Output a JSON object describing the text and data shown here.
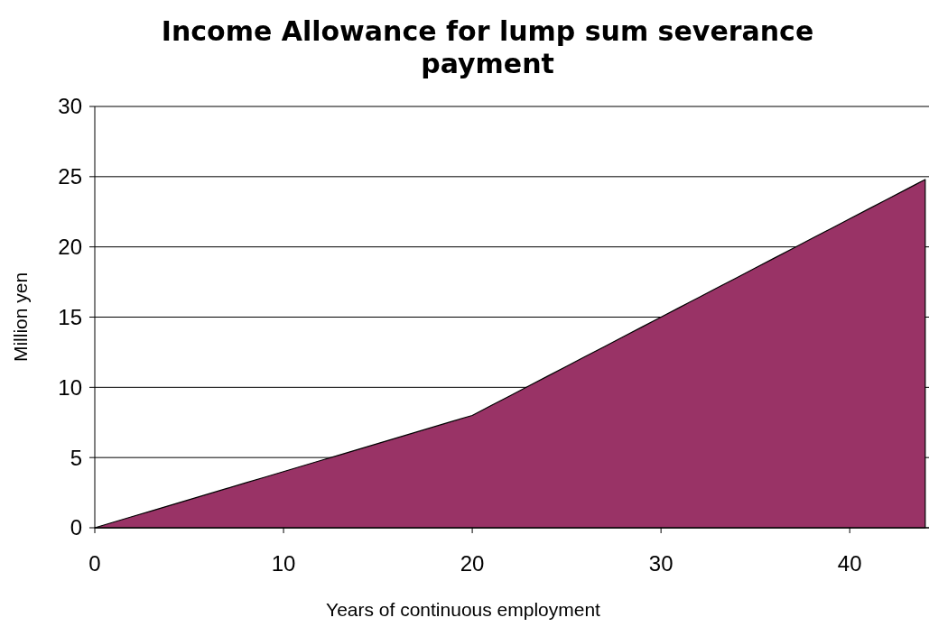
{
  "chart_data": {
    "type": "area",
    "title": "Income Allowance for lump sum severance payment",
    "xlabel": "Years of continuous employment",
    "ylabel": "Million yen",
    "x": [
      0,
      1,
      2,
      3,
      4,
      5,
      6,
      7,
      8,
      9,
      10,
      11,
      12,
      13,
      14,
      15,
      16,
      17,
      18,
      19,
      20,
      21,
      22,
      23,
      24,
      25,
      26,
      27,
      28,
      29,
      30,
      31,
      32,
      33,
      34,
      35,
      36,
      37,
      38,
      39,
      40,
      41,
      42,
      43,
      44
    ],
    "series": [
      {
        "color": "#993366",
        "values": [
          0,
          0.4,
          0.8,
          1.2,
          1.6,
          2,
          2.4,
          2.8,
          3.2,
          3.6,
          4,
          4.4,
          4.8,
          5.2,
          5.6,
          6,
          6.4,
          6.8,
          7.2,
          7.6,
          8,
          8.7,
          9.4,
          10.1,
          10.8,
          11.5,
          12.2,
          12.9,
          13.6,
          14.3,
          15,
          15.7,
          16.4,
          17.1,
          17.8,
          18.5,
          19.2,
          19.9,
          20.6,
          21.3,
          22,
          22.7,
          23.4,
          24.1,
          24.8
        ]
      }
    ],
    "xlim": [
      0,
      44.2
    ],
    "xticks": [
      0,
      10,
      20,
      30,
      40
    ],
    "ylim": [
      0,
      30
    ],
    "yticks": [
      0,
      5,
      10,
      15,
      20,
      25,
      30
    ],
    "grid": "y"
  }
}
